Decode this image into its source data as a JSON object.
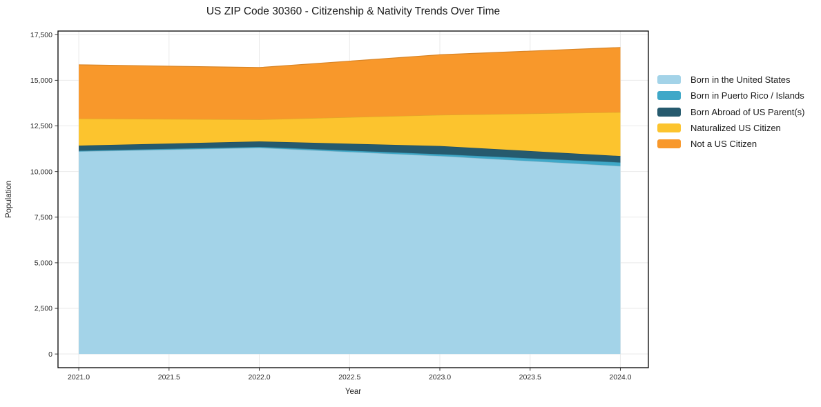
{
  "title": "US ZIP Code 30360 - Citizenship & Nativity Trends Over Time",
  "chart_data": {
    "type": "area",
    "stacked": true,
    "title": "US ZIP Code 30360 - Citizenship & Nativity Trends Over Time",
    "xlabel": "Year",
    "ylabel": "Population",
    "x": [
      2021,
      2022,
      2023,
      2024
    ],
    "series": [
      {
        "name": "Born in the United States",
        "color": "#A3D3E8",
        "values": [
          11100,
          11300,
          10850,
          10300
        ]
      },
      {
        "name": "Born in Puerto Rico / Islands",
        "color": "#3FA8C8",
        "values": [
          40,
          50,
          100,
          200
        ]
      },
      {
        "name": "Born Abroad of US Parent(s)",
        "color": "#265A6E",
        "values": [
          280,
          300,
          450,
          350
        ]
      },
      {
        "name": "Naturalized US Citizen",
        "color": "#FCC42E",
        "values": [
          1480,
          1200,
          1700,
          2400
        ]
      },
      {
        "name": "Not a US Citizen",
        "color": "#F8982B",
        "values": [
          2950,
          2850,
          3300,
          3550
        ]
      }
    ],
    "stack_totals": [
      15850,
      15700,
      16400,
      16800
    ],
    "xlim": [
      2020.885,
      2024.155
    ],
    "ylim": [
      -750,
      17700
    ],
    "x_ticks": [
      {
        "v": 2021.0,
        "label": "2021.0"
      },
      {
        "v": 2021.5,
        "label": "2021.5"
      },
      {
        "v": 2022.0,
        "label": "2022.0"
      },
      {
        "v": 2022.5,
        "label": "2022.5"
      },
      {
        "v": 2023.0,
        "label": "2023.0"
      },
      {
        "v": 2023.5,
        "label": "2023.5"
      },
      {
        "v": 2024.0,
        "label": "2024.0"
      }
    ],
    "y_ticks": [
      {
        "v": 0,
        "label": "0"
      },
      {
        "v": 2500,
        "label": "2,500"
      },
      {
        "v": 5000,
        "label": "5,000"
      },
      {
        "v": 7500,
        "label": "7,500"
      },
      {
        "v": 10000,
        "label": "10,000"
      },
      {
        "v": 12500,
        "label": "12,500"
      },
      {
        "v": 15000,
        "label": "15,000"
      },
      {
        "v": 17500,
        "label": "17,500"
      }
    ],
    "grid": true,
    "grid_color": "#E9E9E9",
    "frame_color": "#000000",
    "legend_position": "right-outside"
  }
}
